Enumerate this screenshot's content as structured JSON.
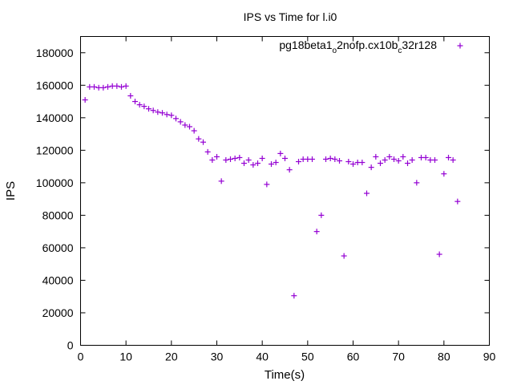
{
  "chart_data": {
    "type": "scatter",
    "title": "IPS vs Time for l.i0",
    "xlabel": "Time(s)",
    "ylabel": "IPS",
    "xlim": [
      0,
      90
    ],
    "ylim": [
      0,
      190000
    ],
    "xticks": [
      0,
      10,
      20,
      30,
      40,
      50,
      60,
      70,
      80,
      90
    ],
    "yticks": [
      0,
      20000,
      40000,
      60000,
      80000,
      100000,
      120000,
      140000,
      160000,
      180000
    ],
    "grid": false,
    "legend_position": "top-right",
    "marker": "+",
    "series_color": "#9400d3",
    "series": [
      {
        "name": "pg18beta1_o2nofp.cx10b_c32r128",
        "name_parts": {
          "a": "pg18beta1",
          "sub1": "o",
          "b": "2nofp.cx10b",
          "sub2": "c",
          "c": "32r128"
        },
        "points": [
          [
            1,
            151000
          ],
          [
            2,
            159000
          ],
          [
            3,
            159000
          ],
          [
            4,
            158500
          ],
          [
            5,
            158500
          ],
          [
            6,
            159000
          ],
          [
            7,
            159500
          ],
          [
            8,
            159500
          ],
          [
            9,
            159000
          ],
          [
            10,
            159500
          ],
          [
            11,
            153500
          ],
          [
            12,
            150000
          ],
          [
            13,
            148000
          ],
          [
            14,
            147000
          ],
          [
            15,
            145500
          ],
          [
            16,
            144500
          ],
          [
            17,
            143500
          ],
          [
            18,
            143000
          ],
          [
            19,
            142000
          ],
          [
            20,
            141500
          ],
          [
            21,
            139500
          ],
          [
            22,
            137500
          ],
          [
            23,
            135500
          ],
          [
            24,
            134500
          ],
          [
            25,
            132000
          ],
          [
            26,
            127000
          ],
          [
            27,
            125000
          ],
          [
            28,
            119000
          ],
          [
            29,
            114000
          ],
          [
            30,
            116000
          ],
          [
            31,
            101000
          ],
          [
            32,
            114000
          ],
          [
            33,
            114500
          ],
          [
            34,
            115000
          ],
          [
            35,
            115500
          ],
          [
            36,
            112000
          ],
          [
            37,
            114000
          ],
          [
            38,
            111000
          ],
          [
            39,
            112000
          ],
          [
            40,
            115000
          ],
          [
            41,
            99000
          ],
          [
            42,
            111500
          ],
          [
            43,
            112500
          ],
          [
            44,
            118000
          ],
          [
            45,
            115000
          ],
          [
            46,
            108000
          ],
          [
            47,
            30500
          ],
          [
            48,
            113000
          ],
          [
            49,
            114500
          ],
          [
            50,
            114500
          ],
          [
            51,
            114500
          ],
          [
            52,
            70000
          ],
          [
            53,
            80000
          ],
          [
            54,
            114500
          ],
          [
            55,
            115000
          ],
          [
            56,
            114500
          ],
          [
            57,
            113500
          ],
          [
            58,
            55000
          ],
          [
            59,
            113000
          ],
          [
            60,
            111500
          ],
          [
            61,
            112500
          ],
          [
            62,
            112500
          ],
          [
            63,
            93500
          ],
          [
            64,
            109500
          ],
          [
            65,
            116000
          ],
          [
            66,
            112000
          ],
          [
            67,
            114000
          ],
          [
            68,
            116000
          ],
          [
            69,
            114500
          ],
          [
            70,
            113500
          ],
          [
            71,
            116000
          ],
          [
            72,
            112000
          ],
          [
            73,
            114000
          ],
          [
            74,
            100000
          ],
          [
            75,
            115500
          ],
          [
            76,
            115500
          ],
          [
            77,
            114000
          ],
          [
            78,
            114000
          ],
          [
            79,
            56000
          ],
          [
            80,
            105500
          ],
          [
            81,
            115500
          ],
          [
            82,
            114000
          ],
          [
            83,
            88500
          ]
        ]
      }
    ]
  }
}
